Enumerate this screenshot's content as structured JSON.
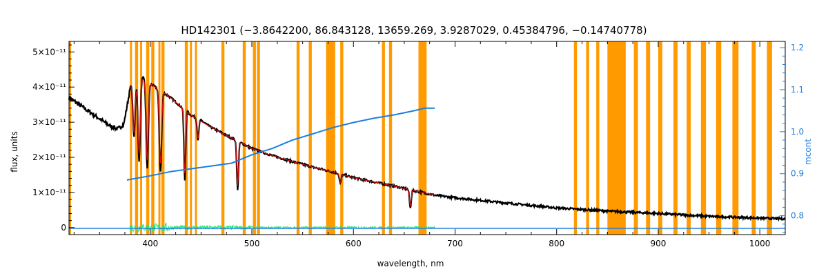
{
  "chart_data": {
    "type": "line",
    "title": "HD142301   (−3.8642200, 86.843128, 13659.269, 3.9287029, 0.45384796, −0.14740778)",
    "xlabel": "wavelength, nm",
    "ylabel": "flux, units",
    "ylabel_right": "mcont",
    "xlim": [
      320,
      1025
    ],
    "ylim": [
      -2e-12,
      5.3e-11
    ],
    "ylim_right": [
      0.755,
      1.215
    ],
    "x_ticks": [
      400,
      500,
      600,
      700,
      800,
      900,
      1000
    ],
    "y_ticks": [
      {
        "value": 0,
        "label": "0"
      },
      {
        "value": 1e-11,
        "label": "1×10⁻¹¹"
      },
      {
        "value": 2e-11,
        "label": "2×10⁻¹¹"
      },
      {
        "value": 3e-11,
        "label": "3×10⁻¹¹"
      },
      {
        "value": 4e-11,
        "label": "4×10⁻¹¹"
      },
      {
        "value": 5e-11,
        "label": "5×10⁻¹¹"
      }
    ],
    "y_ticks_right": [
      {
        "value": 0.8,
        "label": "0.8"
      },
      {
        "value": 0.9,
        "label": "0.9"
      },
      {
        "value": 1.0,
        "label": "1.0"
      },
      {
        "value": 1.1,
        "label": "1.1"
      },
      {
        "value": 1.2,
        "label": "1.2"
      }
    ],
    "mask_bands": [
      [
        319,
        322
      ],
      [
        380,
        382
      ],
      [
        385,
        388
      ],
      [
        390,
        392
      ],
      [
        396,
        399
      ],
      [
        401,
        404
      ],
      [
        408,
        410
      ],
      [
        411,
        414
      ],
      [
        434,
        437
      ],
      [
        439,
        441
      ],
      [
        444,
        446
      ],
      [
        470,
        473
      ],
      [
        491,
        494
      ],
      [
        501,
        504
      ],
      [
        505,
        508
      ],
      [
        544,
        547
      ],
      [
        556,
        559
      ],
      [
        573,
        582
      ],
      [
        587,
        590
      ],
      [
        628,
        631
      ],
      [
        635,
        638
      ],
      [
        664,
        672
      ],
      [
        817,
        820
      ],
      [
        829,
        832
      ],
      [
        839,
        842
      ],
      [
        850,
        868
      ],
      [
        876,
        880
      ],
      [
        888,
        892
      ],
      [
        900,
        904
      ],
      [
        915,
        919
      ],
      [
        928,
        932
      ],
      [
        942,
        947
      ],
      [
        957,
        962
      ],
      [
        973,
        979
      ],
      [
        992,
        996
      ],
      [
        1007,
        1012
      ]
    ],
    "series": [
      {
        "color": "#000000",
        "axis": "left",
        "points": [
          [
            320,
            3.7e-11
          ],
          [
            330,
            3.5e-11
          ],
          [
            340,
            3.3e-11
          ],
          [
            350,
            3.1e-11
          ],
          [
            360,
            2.9e-11
          ],
          [
            368,
            2.8e-11
          ],
          [
            374,
            2.95e-11
          ],
          [
            378,
            3.6e-11
          ],
          [
            381,
            4.1e-11
          ],
          [
            385,
            4.25e-11
          ],
          [
            390,
            4.3e-11
          ],
          [
            395,
            4.25e-11
          ],
          [
            400,
            4.1e-11
          ],
          [
            410,
            3.9e-11
          ],
          [
            420,
            3.7e-11
          ],
          [
            430,
            3.45e-11
          ],
          [
            440,
            3.2e-11
          ],
          [
            450,
            3.05e-11
          ],
          [
            460,
            2.85e-11
          ],
          [
            470,
            2.7e-11
          ],
          [
            480,
            2.55e-11
          ],
          [
            490,
            2.4e-11
          ],
          [
            500,
            2.25e-11
          ],
          [
            520,
            2.05e-11
          ],
          [
            540,
            1.88e-11
          ],
          [
            560,
            1.72e-11
          ],
          [
            580,
            1.58e-11
          ],
          [
            600,
            1.42e-11
          ],
          [
            620,
            1.3e-11
          ],
          [
            640,
            1.18e-11
          ],
          [
            660,
            1.05e-11
          ],
          [
            680,
            9.2e-12
          ],
          [
            700,
            8.5e-12
          ],
          [
            750,
            7e-12
          ],
          [
            800,
            5.6e-12
          ],
          [
            850,
            4.7e-12
          ],
          [
            900,
            4e-12
          ],
          [
            950,
            3.2e-12
          ],
          [
            1000,
            2.7e-12
          ],
          [
            1025,
            2.5e-12
          ]
        ],
        "absorption_lines": [
          {
            "x": 384,
            "y": 2.6e-11
          },
          {
            "x": 389,
            "y": 1.9e-11
          },
          {
            "x": 397,
            "y": 1.7e-11
          },
          {
            "x": 410,
            "y": 1.6e-11
          },
          {
            "x": 434,
            "y": 1.35e-11
          },
          {
            "x": 447,
            "y": 2.5e-11
          },
          {
            "x": 486,
            "y": 1.05e-11
          },
          {
            "x": 587,
            "y": 1.25e-11
          },
          {
            "x": 656,
            "y": 5.5e-12
          }
        ]
      },
      {
        "color": "#e01010",
        "axis": "left",
        "x_range": [
          380,
          680
        ],
        "description_points": [
          [
            380,
            4.05e-11
          ],
          [
            390,
            4.28e-11
          ],
          [
            400,
            4.1e-11
          ],
          [
            420,
            3.7e-11
          ],
          [
            440,
            3.2e-11
          ],
          [
            460,
            2.85e-11
          ],
          [
            480,
            2.55e-11
          ],
          [
            500,
            2.25e-11
          ],
          [
            520,
            2.05e-11
          ],
          [
            540,
            1.88e-11
          ],
          [
            560,
            1.72e-11
          ],
          [
            580,
            1.58e-11
          ],
          [
            600,
            1.42e-11
          ],
          [
            620,
            1.3e-11
          ],
          [
            640,
            1.18e-11
          ],
          [
            660,
            1.05e-11
          ],
          [
            680,
            9.2e-12
          ]
        ]
      },
      {
        "color": "#1a7fe0",
        "axis": "right",
        "points": [
          [
            377,
            0.885
          ],
          [
            400,
            0.895
          ],
          [
            420,
            0.905
          ],
          [
            450,
            0.915
          ],
          [
            480,
            0.925
          ],
          [
            500,
            0.945
          ],
          [
            520,
            0.96
          ],
          [
            540,
            0.98
          ],
          [
            560,
            0.995
          ],
          [
            580,
            1.01
          ],
          [
            600,
            1.022
          ],
          [
            620,
            1.032
          ],
          [
            640,
            1.04
          ],
          [
            660,
            1.05
          ],
          [
            670,
            1.056
          ],
          [
            680,
            1.056
          ]
        ],
        "flat_line": [
          [
            320,
            0.77
          ],
          [
            1025,
            0.77
          ]
        ]
      },
      {
        "color": "#22e87a",
        "axis": "left",
        "x_range": [
          380,
          680
        ],
        "baseline": 0.0,
        "amplitude_max": 1.2e-12
      }
    ]
  }
}
